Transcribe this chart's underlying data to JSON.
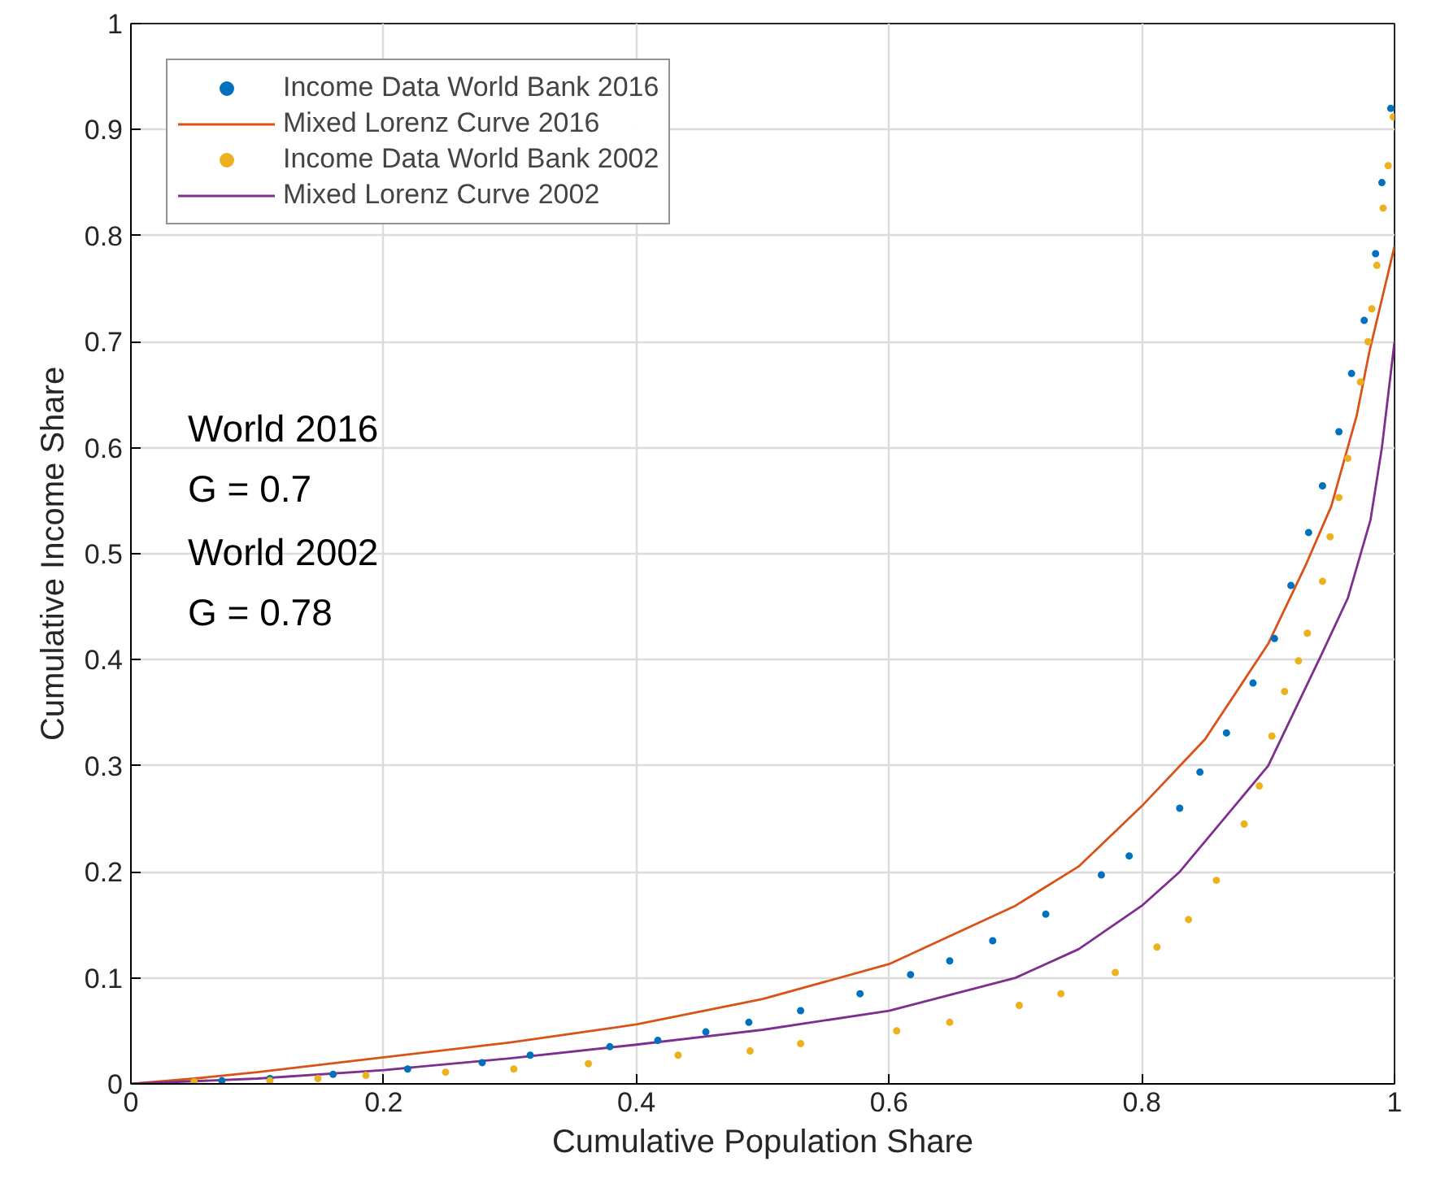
{
  "chart_data": {
    "type": "scatter",
    "xlabel": "Cumulative Population Share",
    "ylabel": "Cumulative Income Share",
    "xlim": [
      0,
      1
    ],
    "ylim": [
      0,
      1
    ],
    "xticks": [
      0,
      0.2,
      0.4,
      0.6,
      0.8,
      1
    ],
    "yticks": [
      0,
      0.1,
      0.2,
      0.3,
      0.4,
      0.5,
      0.6,
      0.7,
      0.8,
      0.9,
      1
    ],
    "grid": true,
    "legend": "top left",
    "annotations": [
      "World 2016",
      "G =  0.7",
      "World 2002",
      "G =  0.78"
    ],
    "series": [
      {
        "name": "Income Data World Bank 2016",
        "color": "#0072bd",
        "x": [
          0.072,
          0.11,
          0.16,
          0.219,
          0.278,
          0.316,
          0.379,
          0.417,
          0.455,
          0.489,
          0.53,
          0.577,
          0.617,
          0.648,
          0.682,
          0.724,
          0.768,
          0.79,
          0.83,
          0.846,
          0.867,
          0.888,
          0.905,
          0.918,
          0.932,
          0.943,
          0.956,
          0.966,
          0.976,
          0.985,
          0.99,
          0.997
        ],
        "values": [
          0.003,
          0.005,
          0.009,
          0.014,
          0.02,
          0.027,
          0.035,
          0.041,
          0.049,
          0.058,
          0.069,
          0.085,
          0.103,
          0.116,
          0.135,
          0.16,
          0.197,
          0.215,
          0.26,
          0.294,
          0.331,
          0.378,
          0.42,
          0.47,
          0.52,
          0.564,
          0.615,
          0.67,
          0.72,
          0.783,
          0.85,
          0.92
        ]
      },
      {
        "name": "Mixed Lorenz Curve 2016",
        "type": "line",
        "color": "#d95319",
        "x": [
          0,
          0.05,
          0.1,
          0.2,
          0.3,
          0.4,
          0.5,
          0.6,
          0.7,
          0.75,
          0.8,
          0.85,
          0.9,
          0.93,
          0.95,
          0.97,
          0.98,
          0.99,
          1.0
        ],
        "values": [
          0,
          0.005,
          0.011,
          0.025,
          0.039,
          0.056,
          0.08,
          0.113,
          0.168,
          0.205,
          0.262,
          0.325,
          0.415,
          0.49,
          0.545,
          0.63,
          0.69,
          0.74,
          0.79
        ]
      },
      {
        "name": "Income Data World Bank 2002",
        "color": "#edb120",
        "x": [
          0.05,
          0.11,
          0.148,
          0.186,
          0.249,
          0.303,
          0.362,
          0.433,
          0.49,
          0.53,
          0.606,
          0.648,
          0.703,
          0.736,
          0.779,
          0.812,
          0.837,
          0.859,
          0.881,
          0.893,
          0.903,
          0.913,
          0.924,
          0.931,
          0.943,
          0.949,
          0.956,
          0.963,
          0.973,
          0.979,
          0.982,
          0.986,
          0.991,
          0.995,
          0.999
        ],
        "values": [
          0.002,
          0.003,
          0.005,
          0.008,
          0.011,
          0.014,
          0.019,
          0.027,
          0.031,
          0.038,
          0.05,
          0.058,
          0.074,
          0.085,
          0.105,
          0.129,
          0.155,
          0.192,
          0.245,
          0.281,
          0.328,
          0.37,
          0.399,
          0.425,
          0.474,
          0.516,
          0.553,
          0.59,
          0.662,
          0.7,
          0.731,
          0.772,
          0.826,
          0.866,
          0.912
        ]
      },
      {
        "name": "Mixed Lorenz Curve 2002",
        "type": "line",
        "color": "#7e2f8e",
        "x": [
          0,
          0.1,
          0.2,
          0.3,
          0.4,
          0.5,
          0.6,
          0.7,
          0.75,
          0.8,
          0.83,
          0.9,
          0.943,
          0.963,
          0.981,
          0.99,
          1.0
        ],
        "values": [
          0,
          0.005,
          0.013,
          0.024,
          0.037,
          0.051,
          0.069,
          0.1,
          0.127,
          0.168,
          0.2,
          0.3,
          0.407,
          0.458,
          0.532,
          0.6,
          0.7
        ]
      }
    ]
  }
}
